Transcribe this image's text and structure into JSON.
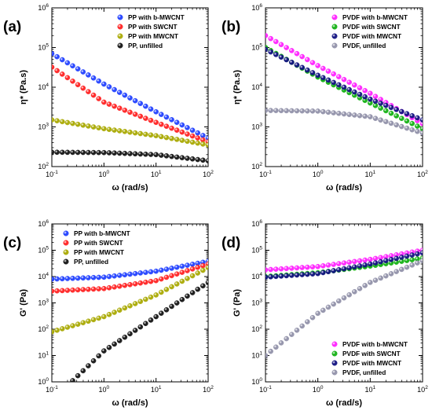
{
  "figure": {
    "chart_data": [
      {
        "panel": "(a)",
        "type": "scatter",
        "x_scale": "log",
        "y_scale": "log",
        "xlim": [
          0.1,
          100
        ],
        "ylim": [
          100,
          1000000
        ],
        "xlabel": "ω (rad/s)",
        "ylabel": "η* (Pa.s)",
        "x_ticks": [
          "10-1",
          "100",
          "101",
          "102"
        ],
        "y_ticks": [
          "102",
          "103",
          "104",
          "105",
          "106"
        ],
        "legend_position": "top-right",
        "series": [
          {
            "name": "PP with b-MWCNT",
            "color": "#1f3fff",
            "x": [
              0.1,
              1,
              10,
              100
            ],
            "y": [
              70000,
              12000,
              2400,
              520
            ]
          },
          {
            "name": "PP with SWCNT",
            "color": "#ff2020",
            "x": [
              0.1,
              1,
              10,
              100
            ],
            "y": [
              32000,
              4200,
              1300,
              420
            ]
          },
          {
            "name": "PP with MWCNT",
            "color": "#a8a800",
            "x": [
              0.1,
              1,
              10,
              100
            ],
            "y": [
              1500,
              900,
              600,
              350
            ]
          },
          {
            "name": "PP, unfilled",
            "color": "#111111",
            "x": [
              0.1,
              1,
              10,
              100
            ],
            "y": [
              230,
              225,
              200,
              140
            ]
          }
        ]
      },
      {
        "panel": "(b)",
        "type": "scatter",
        "x_scale": "log",
        "y_scale": "log",
        "xlim": [
          0.1,
          100
        ],
        "ylim": [
          100,
          1000000
        ],
        "xlabel": "ω (rad/s)",
        "ylabel": "η* (Pa.s)",
        "x_ticks": [
          "10-1",
          "100",
          "101",
          "102"
        ],
        "y_ticks": [
          "102",
          "103",
          "104",
          "105",
          "106"
        ],
        "legend_position": "top-right",
        "series": [
          {
            "name": "PVDF with b-MWCNT",
            "color": "#ff20ff",
            "x": [
              0.1,
              1,
              10,
              100
            ],
            "y": [
              200000,
              35000,
              7000,
              1200
            ]
          },
          {
            "name": "PVDF with SWCNT",
            "color": "#10b010",
            "x": [
              0.1,
              1,
              10,
              100
            ],
            "y": [
              100000,
              18000,
              4000,
              900
            ]
          },
          {
            "name": "PVDF with MWCNT",
            "color": "#101080",
            "x": [
              0.1,
              1,
              10,
              100
            ],
            "y": [
              90000,
              20000,
              5000,
              1500
            ]
          },
          {
            "name": "PVDF, unfilled",
            "color": "#9090a8",
            "x": [
              0.1,
              1,
              10,
              100
            ],
            "y": [
              2600,
              2500,
              1800,
              700
            ]
          }
        ]
      },
      {
        "panel": "(c)",
        "type": "scatter",
        "x_scale": "log",
        "y_scale": "log",
        "xlim": [
          0.1,
          100
        ],
        "ylim": [
          1,
          1000000
        ],
        "xlabel": "ω (rad/s)",
        "ylabel": "G' (Pa)",
        "x_ticks": [
          "10-1",
          "100",
          "101",
          "102"
        ],
        "y_ticks": [
          "100",
          "101",
          "102",
          "103",
          "104",
          "105",
          "106"
        ],
        "legend_position": "top-left",
        "series": [
          {
            "name": "PP with b-MWCNT",
            "color": "#1f3fff",
            "x": [
              0.1,
              1,
              10,
              100
            ],
            "y": [
              8000,
              9500,
              16000,
              38000
            ]
          },
          {
            "name": "PP with SWCNT",
            "color": "#ff2020",
            "x": [
              0.1,
              1,
              10,
              100
            ],
            "y": [
              2800,
              3500,
              7000,
              30000
            ]
          },
          {
            "name": "PP with MWCNT",
            "color": "#a8a800",
            "x": [
              0.1,
              1,
              10,
              100
            ],
            "y": [
              80,
              300,
              2000,
              22000
            ]
          },
          {
            "name": "PP, unfilled",
            "color": "#111111",
            "x": [
              0.25,
              1,
              10,
              100
            ],
            "y": [
              1.1,
              15,
              300,
              6000
            ]
          }
        ]
      },
      {
        "panel": "(d)",
        "type": "scatter",
        "x_scale": "log",
        "y_scale": "log",
        "xlim": [
          0.1,
          100
        ],
        "ylim": [
          1,
          1000000
        ],
        "xlabel": "ω (rad/s)",
        "ylabel": "G' (Pa)",
        "x_ticks": [
          "10-1",
          "100",
          "101",
          "102"
        ],
        "y_ticks": [
          "100",
          "101",
          "102",
          "103",
          "104",
          "105",
          "106"
        ],
        "legend_position": "bottom-right",
        "series": [
          {
            "name": "PVDF with b-MWCNT",
            "color": "#ff20ff",
            "x": [
              0.1,
              1,
              10,
              100
            ],
            "y": [
              18000,
              24000,
              45000,
              100000
            ]
          },
          {
            "name": "PVDF with SWCNT",
            "color": "#10b010",
            "x": [
              0.1,
              1,
              10,
              100
            ],
            "y": [
              10000,
              14000,
              25000,
              50000
            ]
          },
          {
            "name": "PVDF with MWCNT",
            "color": "#101080",
            "x": [
              0.1,
              1,
              10,
              100
            ],
            "y": [
              9500,
              13000,
              30000,
              80000
            ]
          },
          {
            "name": "PVDF, unfilled",
            "color": "#9090a8",
            "x": [
              0.1,
              1,
              10,
              100
            ],
            "y": [
              10,
              400,
              6000,
              40000
            ]
          }
        ]
      }
    ]
  }
}
